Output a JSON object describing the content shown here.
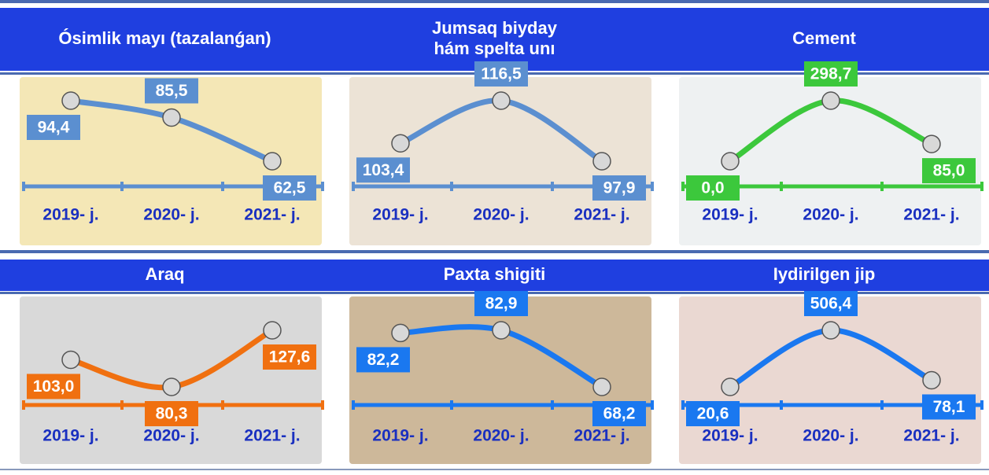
{
  "chart_data": [
    {
      "type": "line",
      "title": [
        "Ósimlik mayı (tazalanǵan)"
      ],
      "categories": [
        "2019- j.",
        "2020- j.",
        "2021- j."
      ],
      "values": [
        94.4,
        85.5,
        62.5
      ],
      "value_labels": [
        "94,4",
        "85,5",
        "62,5"
      ],
      "color": "#5b8fd0"
    },
    {
      "type": "line",
      "title": [
        "Jumsaq biyday",
        "hám spelta unı"
      ],
      "categories": [
        "2019- j.",
        "2020- j.",
        "2021- j."
      ],
      "values": [
        103.4,
        116.5,
        97.9
      ],
      "value_labels": [
        "103,4",
        "116,5",
        "97,9"
      ],
      "color": "#5b8fd0"
    },
    {
      "type": "line",
      "title": [
        "Cement"
      ],
      "categories": [
        "2019- j.",
        "2020- j.",
        "2021- j."
      ],
      "values": [
        0.0,
        298.7,
        85.0
      ],
      "value_labels": [
        "0,0",
        "298,7",
        "85,0"
      ],
      "color": "#3cc83c"
    },
    {
      "type": "line",
      "title": [
        "Araq"
      ],
      "categories": [
        "2019- j.",
        "2020- j.",
        "2021- j."
      ],
      "values": [
        103.0,
        80.3,
        127.6
      ],
      "value_labels": [
        "103,0",
        "80,3",
        "127,6"
      ],
      "color": "#f07010"
    },
    {
      "type": "line",
      "title": [
        "Paxta shigiti"
      ],
      "categories": [
        "2019- j.",
        "2020- j.",
        "2021- j."
      ],
      "values": [
        82.2,
        82.9,
        68.2
      ],
      "value_labels": [
        "82,2",
        "82,9",
        "68,2"
      ],
      "color": "#1a78f0"
    },
    {
      "type": "line",
      "title": [
        "Iydirilgen jip"
      ],
      "categories": [
        "2019- j.",
        "2020- j.",
        "2021- j."
      ],
      "values": [
        20.6,
        506.4,
        78.1
      ],
      "value_labels": [
        "20,6",
        "506,4",
        "78,1"
      ],
      "color": "#1a78f0"
    }
  ]
}
